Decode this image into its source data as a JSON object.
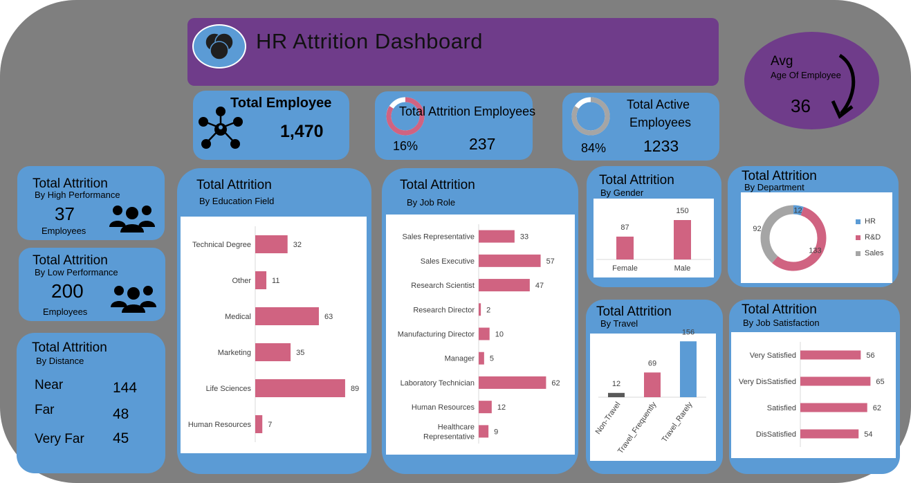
{
  "header": {
    "title": "HR Attrition Dashboard"
  },
  "kpis": {
    "total_employee": {
      "title": "Total Employee",
      "value": "1,470"
    },
    "attrition": {
      "title": "Total Attrition Employees",
      "pct": "16%",
      "value": "237",
      "ratio": 0.16
    },
    "active": {
      "title_line1": "Total Active",
      "title_line2": "Employees",
      "pct": "84%",
      "value": "1233",
      "ratio": 0.84
    },
    "avg_age": {
      "label": "Avg",
      "sublabel": "Age Of Employee",
      "value": "36"
    }
  },
  "cards": {
    "high_perf": {
      "title": "Total Attrition",
      "subtitle": "By High Performance",
      "value": "37",
      "unit": "Employees"
    },
    "low_perf": {
      "title": "Total Attrition",
      "subtitle": "By Low Performance",
      "value": "200",
      "unit": "Employees"
    },
    "distance": {
      "title": "Total Attrition",
      "subtitle": "By Distance",
      "rows": [
        {
          "label": "Near",
          "value": "144"
        },
        {
          "label": "Far",
          "value": "48"
        },
        {
          "label": "Very Far",
          "value": "45"
        }
      ]
    },
    "education": {
      "title": "Total Attrition",
      "subtitle": "By Education Field"
    },
    "jobrole": {
      "title": "Total Attrition",
      "subtitle": "By Job Role"
    },
    "gender": {
      "title": "Total Attrition",
      "subtitle": "By Gender"
    },
    "department": {
      "title": "Total Attrition",
      "subtitle": "By Department"
    },
    "travel": {
      "title": "Total Attrition",
      "subtitle": "By Travel"
    },
    "satisfaction": {
      "title": "Total Attrition",
      "subtitle": "By Job Satisfaction"
    }
  },
  "colors": {
    "bar": "#d06381",
    "blue": "#5b9bd5",
    "gray": "#a5a5a5",
    "purple": "#6f3c8a",
    "dark": "#595959"
  },
  "chart_data": [
    {
      "id": "education",
      "type": "bar",
      "orientation": "horizontal",
      "categories": [
        "Technical Degree",
        "Other",
        "Medical",
        "Marketing",
        "Life Sciences",
        "Human Resources"
      ],
      "values": [
        32,
        11,
        63,
        35,
        89,
        7
      ],
      "xlim": [
        0,
        100
      ]
    },
    {
      "id": "jobrole",
      "type": "bar",
      "orientation": "horizontal",
      "categories": [
        "Sales Representative",
        "Sales Executive",
        "Research Scientist",
        "Research Director",
        "Manufacturing Director",
        "Manager",
        "Laboratory Technician",
        "Human Resources",
        "Healthcare Representative"
      ],
      "values": [
        33,
        57,
        47,
        2,
        10,
        5,
        62,
        12,
        9
      ],
      "xlim": [
        0,
        70
      ]
    },
    {
      "id": "gender",
      "type": "bar",
      "orientation": "vertical",
      "categories": [
        "Female",
        "Male"
      ],
      "values": [
        87,
        150
      ],
      "ylim": [
        0,
        200
      ]
    },
    {
      "id": "department",
      "type": "pie",
      "categories": [
        "HR",
        "R&D",
        "Sales"
      ],
      "values": [
        12,
        133,
        92
      ],
      "legend": "right"
    },
    {
      "id": "travel",
      "type": "bar",
      "orientation": "vertical",
      "categories": [
        "Non-Travel",
        "Travel_Frequently",
        "Travel_Rarely"
      ],
      "values": [
        12,
        69,
        156
      ],
      "ylim": [
        0,
        170
      ]
    },
    {
      "id": "satisfaction",
      "type": "bar",
      "orientation": "horizontal",
      "categories": [
        "Very Satisfied",
        "Very DisSatisfied",
        "Satisfied",
        "DisSatisfied"
      ],
      "values": [
        56,
        65,
        62,
        54
      ],
      "xlim": [
        0,
        75
      ]
    }
  ]
}
